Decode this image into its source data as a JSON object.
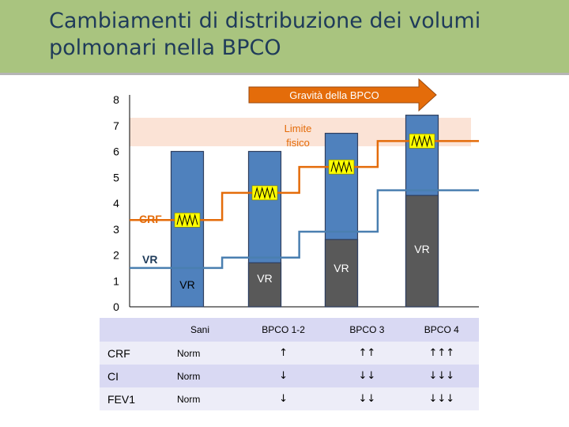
{
  "title": "Cambiamenti di distribuzione dei volumi polmonari nella BPCO",
  "colors": {
    "title_bg": "#a9c47f",
    "title_text": "#1f3b5a",
    "bar_fill": "#4f81bd",
    "bar_border": "#2f3f5f",
    "vr_fill": "#595959",
    "crf_line": "#e46c0a",
    "vr_line": "#4a7fb0",
    "physical_limit_band": "#fbe3d6",
    "breathing_box": "#ffff00",
    "arrow_fill": "#e46c0a",
    "table_header_bg": "#d9d9f3",
    "table_row_bg": "#ededf8"
  },
  "chart_data": {
    "type": "bar",
    "title": "Cambiamenti di distribuzione dei volumi polmonari nella BPCO",
    "categories": [
      "Sani",
      "BPCO 1-2",
      "BPCO 3",
      "BPCO 4"
    ],
    "ylim": [
      0,
      8
    ],
    "y_ticks": [
      "0",
      "1",
      "2",
      "3",
      "4",
      "5",
      "6",
      "7",
      "8"
    ],
    "grid": false,
    "series": [
      {
        "values": [
          6.0,
          6.0,
          6.7,
          7.4
        ]
      },
      {
        "name": "VR",
        "values": [
          0,
          1.7,
          2.6,
          4.3
        ]
      }
    ],
    "bar_labels": [
      "VR",
      "VR",
      "VR",
      "VR"
    ],
    "crf_line": [
      {
        "x": "start",
        "y": 3.35
      },
      {
        "x": "Sani",
        "y": 3.35
      },
      {
        "x": "BPCO 1-2",
        "y": 4.4
      },
      {
        "x": "BPCO 3",
        "y": 5.4
      },
      {
        "x": "BPCO 4",
        "y": 6.4
      }
    ],
    "vr_line": [
      {
        "x": "start",
        "y": 1.5
      },
      {
        "x": "Sani",
        "y": 1.5
      },
      {
        "x": "BPCO 1-2",
        "y": 1.9
      },
      {
        "x": "BPCO 3",
        "y": 2.9
      },
      {
        "x": "BPCO 4",
        "y": 4.5
      }
    ],
    "tidal_breathing_y": [
      3.35,
      4.4,
      5.4,
      6.4
    ],
    "physical_limit_band": [
      6.2,
      7.3
    ],
    "annotations": {
      "gravity_arrow": "Gravità della BPCO",
      "physical_limit_line1": "Limite",
      "physical_limit_line2": "fisico",
      "crf_label": "CRF",
      "vr_label": "VR"
    }
  },
  "table": {
    "header": [
      "",
      "Sani",
      "BPCO 1-2",
      "BPCO 3",
      "BPCO 4"
    ],
    "rows": [
      {
        "label": "CRF",
        "cells": [
          "Norm",
          "↑",
          "↑↑",
          "↑↑↑"
        ]
      },
      {
        "label": "CI",
        "cells": [
          "Norm",
          "↓",
          "↓↓",
          "↓↓↓"
        ]
      },
      {
        "label": "FEV1",
        "cells": [
          "Norm",
          "↓",
          "↓↓",
          "↓↓↓"
        ]
      }
    ]
  }
}
